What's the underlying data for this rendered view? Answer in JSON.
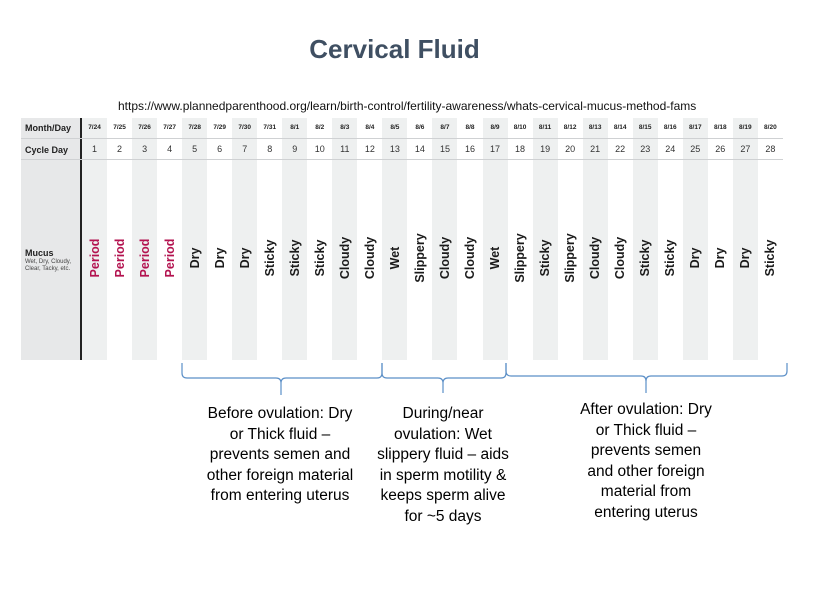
{
  "title": "Cervical Fluid",
  "source_url": "https://www.plannedparenthood.org/learn/birth-control/fertility-awareness/whats-cervical-mucus-method-fams",
  "chart": {
    "row_labels": {
      "month_day": "Month/Day",
      "cycle_day": "Cycle Day",
      "mucus": "Mucus",
      "mucus_sub": "Wet, Dry, Cloudy, Clear, Tacky, etc."
    },
    "days": [
      {
        "date": "7/24",
        "cycle": "1",
        "mucus": "Period"
      },
      {
        "date": "7/25",
        "cycle": "2",
        "mucus": "Period"
      },
      {
        "date": "7/26",
        "cycle": "3",
        "mucus": "Period"
      },
      {
        "date": "7/27",
        "cycle": "4",
        "mucus": "Period"
      },
      {
        "date": "7/28",
        "cycle": "5",
        "mucus": "Dry"
      },
      {
        "date": "7/29",
        "cycle": "6",
        "mucus": "Dry"
      },
      {
        "date": "7/30",
        "cycle": "7",
        "mucus": "Dry"
      },
      {
        "date": "7/31",
        "cycle": "8",
        "mucus": "Sticky"
      },
      {
        "date": "8/1",
        "cycle": "9",
        "mucus": "Sticky"
      },
      {
        "date": "8/2",
        "cycle": "10",
        "mucus": "Sticky"
      },
      {
        "date": "8/3",
        "cycle": "11",
        "mucus": "Cloudy"
      },
      {
        "date": "8/4",
        "cycle": "12",
        "mucus": "Cloudy"
      },
      {
        "date": "8/5",
        "cycle": "13",
        "mucus": "Wet"
      },
      {
        "date": "8/6",
        "cycle": "14",
        "mucus": "Slippery"
      },
      {
        "date": "8/7",
        "cycle": "15",
        "mucus": "Cloudy"
      },
      {
        "date": "8/8",
        "cycle": "16",
        "mucus": "Cloudy"
      },
      {
        "date": "8/9",
        "cycle": "17",
        "mucus": "Wet"
      },
      {
        "date": "8/10",
        "cycle": "18",
        "mucus": "Slippery"
      },
      {
        "date": "8/11",
        "cycle": "19",
        "mucus": "Sticky"
      },
      {
        "date": "8/12",
        "cycle": "20",
        "mucus": "Slippery"
      },
      {
        "date": "8/13",
        "cycle": "21",
        "mucus": "Cloudy"
      },
      {
        "date": "8/14",
        "cycle": "22",
        "mucus": "Cloudy"
      },
      {
        "date": "8/15",
        "cycle": "23",
        "mucus": "Sticky"
      },
      {
        "date": "8/16",
        "cycle": "24",
        "mucus": "Sticky"
      },
      {
        "date": "8/17",
        "cycle": "25",
        "mucus": "Dry"
      },
      {
        "date": "8/18",
        "cycle": "26",
        "mucus": "Dry"
      },
      {
        "date": "8/19",
        "cycle": "27",
        "mucus": "Dry"
      },
      {
        "date": "8/20",
        "cycle": "28",
        "mucus": "Sticky"
      }
    ]
  },
  "phases": {
    "before": "Before ovulation: Dry or Thick fluid – prevents semen and other foreign material from entering uterus",
    "during": "During/near ovulation: Wet slippery fluid – aids in sperm motility & keeps sperm alive for ~5 days",
    "after": "After ovulation: Dry or Thick fluid – prevents semen and other foreign material from entering uterus"
  },
  "colors": {
    "title": "#3f4f62",
    "period": "#b3124f",
    "brace": "#5b8fc7",
    "shade": "#eef0f0",
    "label_bg": "#e7e8e9"
  }
}
